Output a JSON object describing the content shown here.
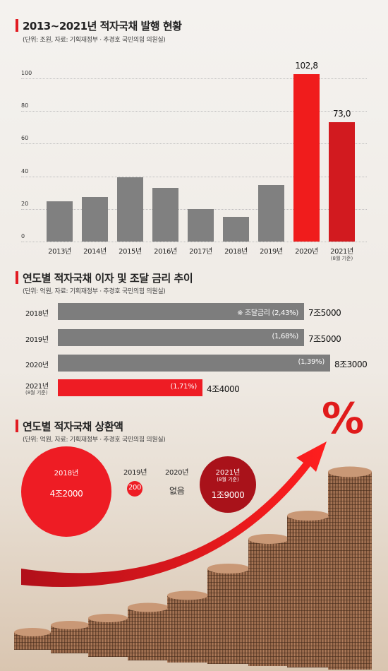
{
  "section1": {
    "title": "2013~2021년 적자국채 발행 현황",
    "subtitle": "(단위: 조원, 자료: 기획재정부 · 추경호 국민의힘 의원실)",
    "chart_data": {
      "type": "bar",
      "categories": [
        "2013년",
        "2014년",
        "2015년",
        "2016년",
        "2017년",
        "2018년",
        "2019년",
        "2020년",
        "2021년"
      ],
      "category_notes": [
        "",
        "",
        "",
        "",
        "",
        "",
        "",
        "",
        "(8월 기준)"
      ],
      "values": [
        24.5,
        27.5,
        39.5,
        33.0,
        20.0,
        15.0,
        34.5,
        102.8,
        73.0
      ],
      "data_labels": [
        "",
        "",
        "",
        "",
        "",
        "",
        "",
        "102,8",
        "73,0"
      ],
      "yticks": [
        "0",
        "20",
        "40",
        "60",
        "80",
        "100"
      ],
      "ylim": [
        0,
        110
      ],
      "colors": [
        "#808080",
        "#808080",
        "#808080",
        "#808080",
        "#808080",
        "#808080",
        "#808080",
        "#f01c1c",
        "#d21a1f"
      ],
      "grid": true
    }
  },
  "section2": {
    "title": "연도별 적자국채 이자 및 조달 금리 추이",
    "subtitle": "(단위: 억원, 자료: 기획재정부 · 추경호 국민의힘 의원실)",
    "chart_data": {
      "type": "bar",
      "orientation": "horizontal",
      "categories": [
        "2018년",
        "2019년",
        "2020년",
        "2021년"
      ],
      "category_notes": [
        "",
        "",
        "",
        "(8월 기준)"
      ],
      "values": [
        75000,
        75000,
        83000,
        44000
      ],
      "value_labels": [
        "7조5000",
        "7조5000",
        "8조3000",
        "4조4000"
      ],
      "rates": [
        2.43,
        1.68,
        1.39,
        1.71
      ],
      "rate_labels": [
        "※ 조달금리 (2,43%)",
        "(1,68%)",
        "(1,39%)",
        "(1,71%)"
      ],
      "colors": [
        "#7d7d7d",
        "#7d7d7d",
        "#7d7d7d",
        "#ee1c24"
      ]
    }
  },
  "section3": {
    "title": "연도별 적자국채 상환액",
    "subtitle": "(단위: 억원, 자료: 기획재정부 · 추경호 국민의힘 의원실)",
    "items": [
      {
        "year": "2018년",
        "amount": "4조2000",
        "note": ""
      },
      {
        "year": "2019년",
        "amount": "200",
        "note": ""
      },
      {
        "year": "2020년",
        "amount": "없음",
        "note": ""
      },
      {
        "year": "2021년",
        "amount": "1조9000",
        "note": "(8월 기준)"
      }
    ],
    "percent_symbol": "%"
  }
}
